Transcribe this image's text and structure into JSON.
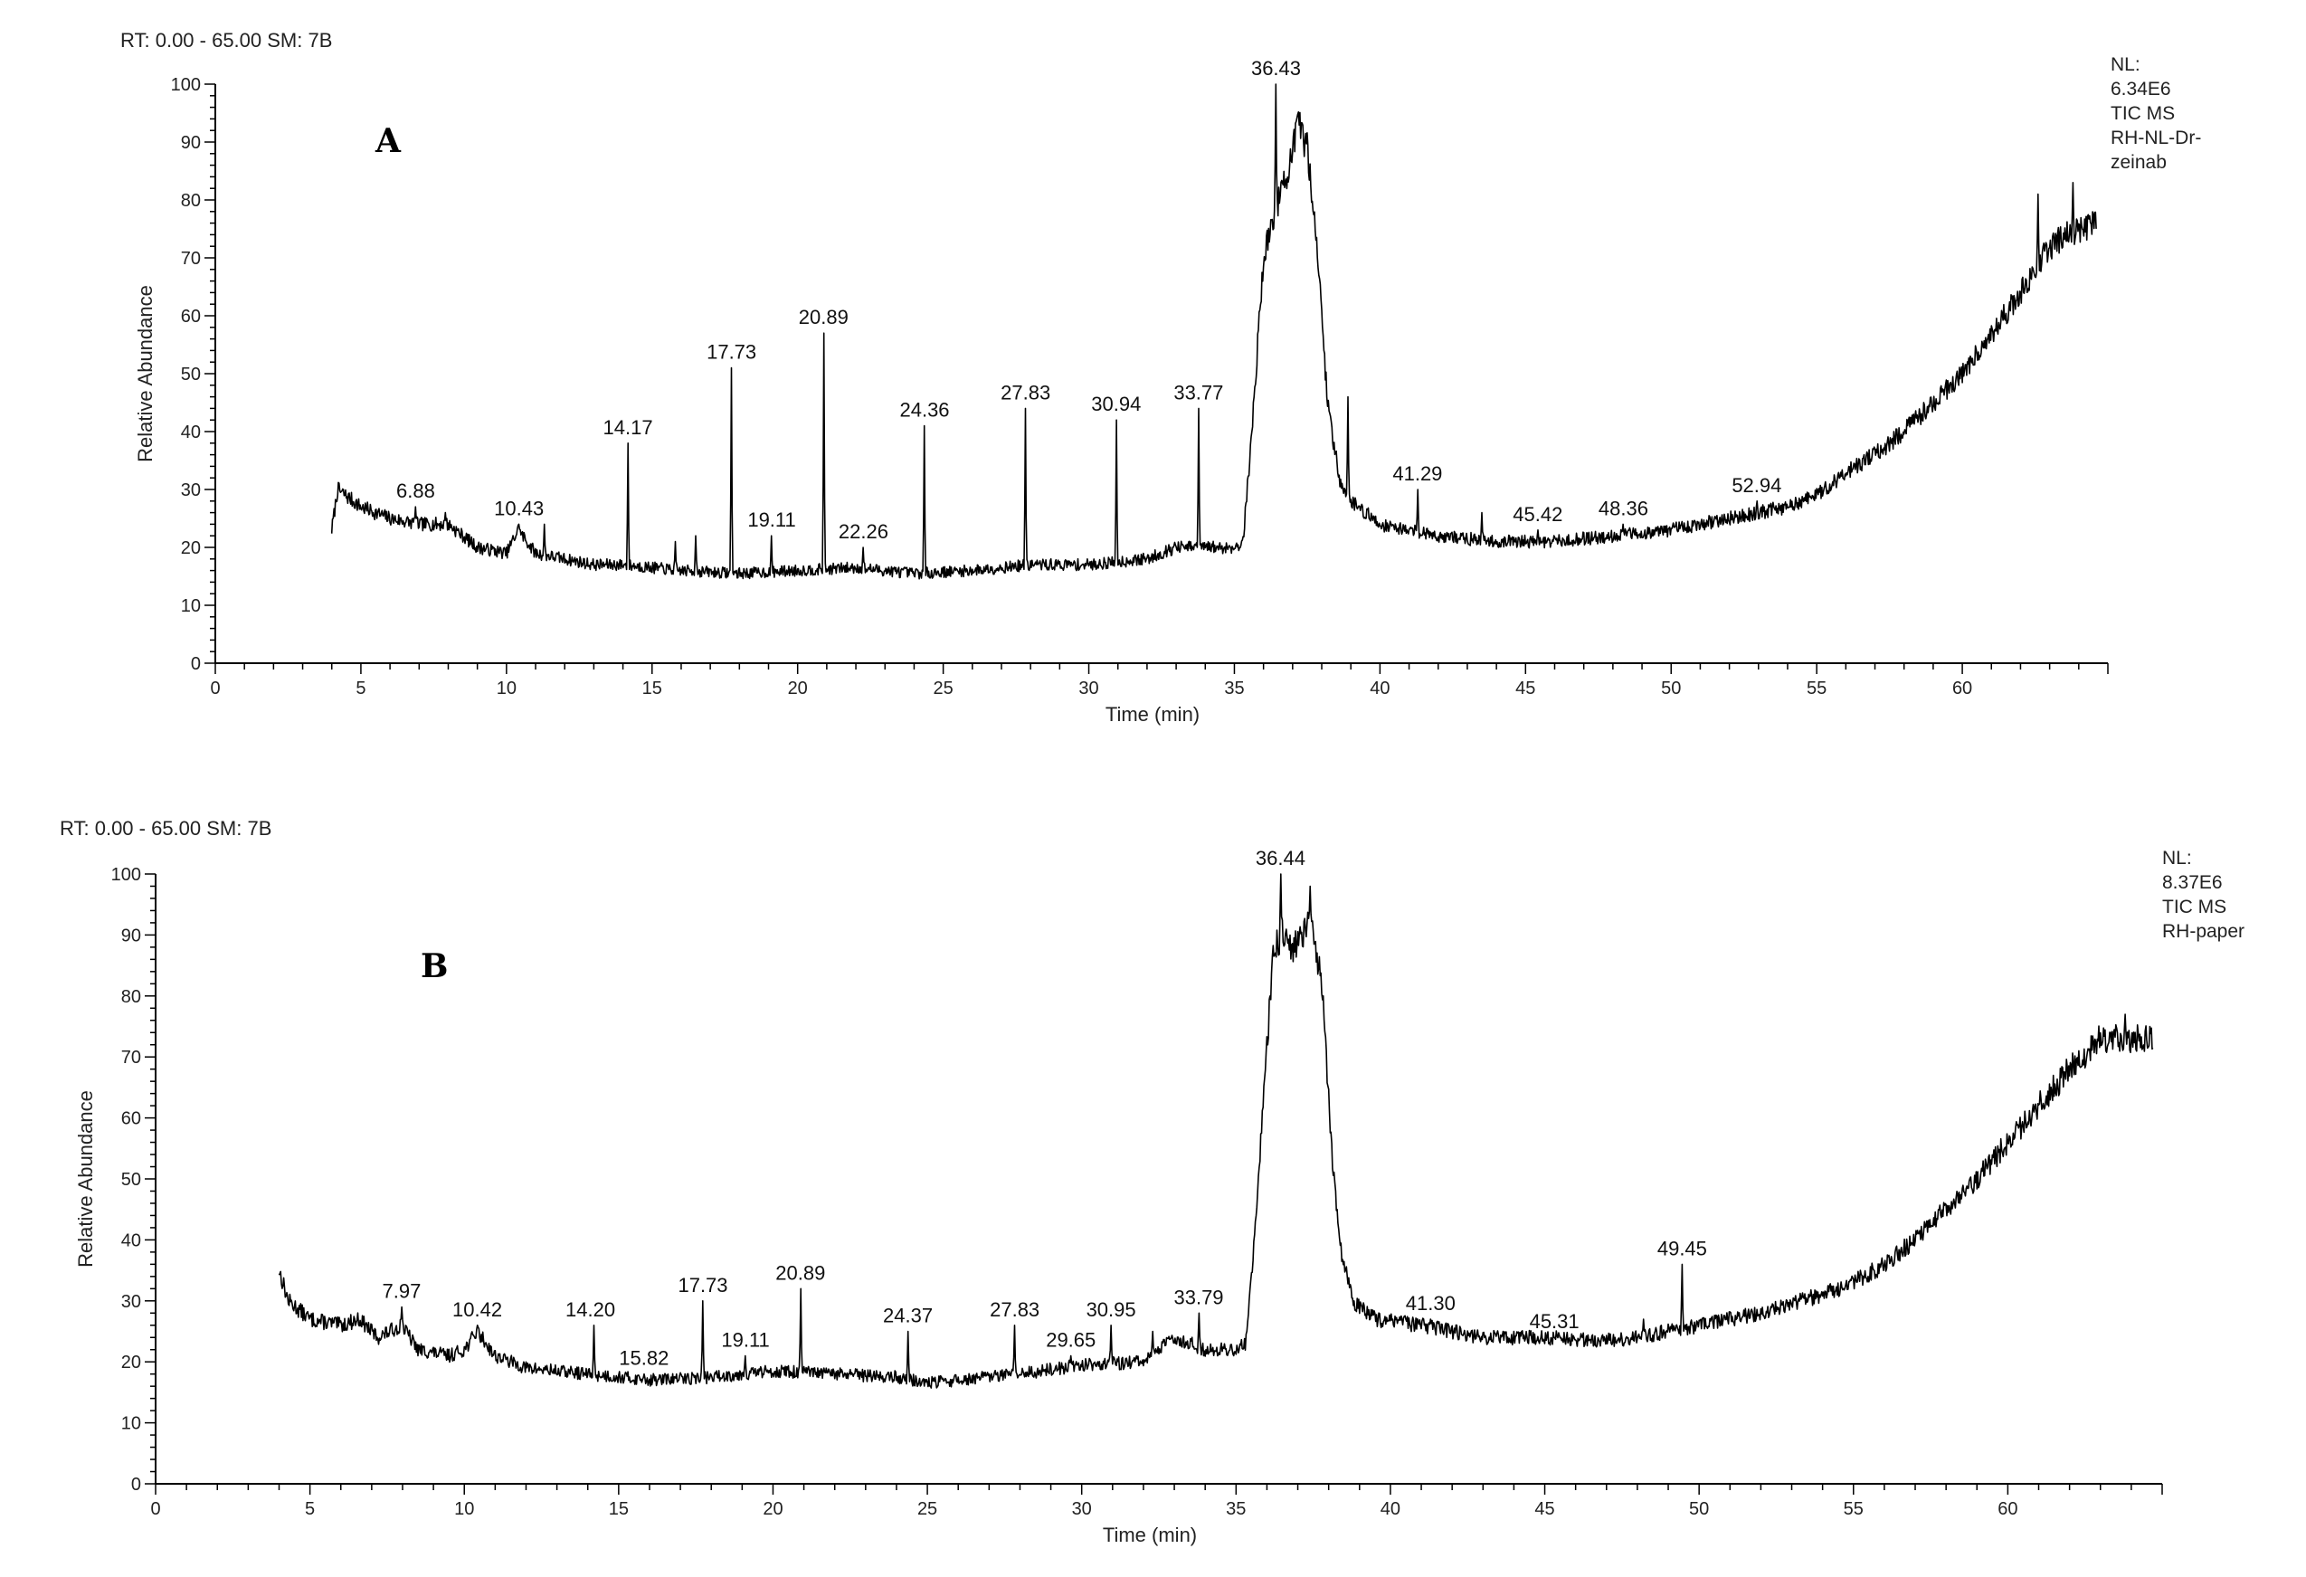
{
  "chart_data": [
    {
      "type": "line",
      "panel_label": "A",
      "header": "RT: 0.00 - 65.00   SM: 7B",
      "xlabel": "Time (min)",
      "ylabel": "Relative Abundance",
      "xlim": [
        0,
        65
      ],
      "ylim": [
        0,
        100
      ],
      "x_ticks": [
        "0",
        "5",
        "10",
        "15",
        "20",
        "25",
        "30",
        "35",
        "40",
        "45",
        "50",
        "55",
        "60"
      ],
      "y_ticks": [
        "0",
        "10",
        "20",
        "30",
        "40",
        "50",
        "60",
        "70",
        "80",
        "90",
        "100"
      ],
      "info": [
        "NL:",
        "6.34E6",
        "TIC  MS",
        "RH-NL-Dr-",
        "zeinab"
      ],
      "baseline": [
        [
          4.0,
          23
        ],
        [
          4.2,
          30
        ],
        [
          5.0,
          27
        ],
        [
          6.0,
          25
        ],
        [
          7.0,
          24
        ],
        [
          8.0,
          24
        ],
        [
          9.0,
          20
        ],
        [
          10.0,
          19
        ],
        [
          10.4,
          23
        ],
        [
          11.0,
          19
        ],
        [
          12.0,
          18
        ],
        [
          13.0,
          17
        ],
        [
          14.0,
          17
        ],
        [
          15.0,
          16.5
        ],
        [
          16.0,
          16
        ],
        [
          18.0,
          15.5
        ],
        [
          20.0,
          16
        ],
        [
          22.0,
          16.5
        ],
        [
          24.0,
          15.5
        ],
        [
          26.0,
          16
        ],
        [
          28.0,
          17
        ],
        [
          30.0,
          17
        ],
        [
          32.0,
          18
        ],
        [
          33.0,
          20
        ],
        [
          35.0,
          20
        ],
        [
          35.3,
          21
        ],
        [
          35.6,
          40
        ],
        [
          36.0,
          70
        ],
        [
          36.4,
          78
        ],
        [
          36.9,
          86
        ],
        [
          37.2,
          93
        ],
        [
          37.5,
          89
        ],
        [
          37.8,
          75
        ],
        [
          38.2,
          45
        ],
        [
          38.6,
          32
        ],
        [
          39.0,
          28
        ],
        [
          40.0,
          24
        ],
        [
          42.0,
          22
        ],
        [
          44.0,
          21
        ],
        [
          46.0,
          21
        ],
        [
          48.0,
          22
        ],
        [
          50.0,
          23
        ],
        [
          52.0,
          25
        ],
        [
          54.0,
          27
        ],
        [
          55.0,
          29
        ],
        [
          56.0,
          33
        ],
        [
          57.0,
          36
        ],
        [
          58.0,
          40
        ],
        [
          59.0,
          45
        ],
        [
          60.0,
          50
        ],
        [
          61.0,
          57
        ],
        [
          62.0,
          64
        ],
        [
          63.0,
          72
        ],
        [
          64.0,
          75
        ],
        [
          64.6,
          76
        ]
      ],
      "noise_seed": 7,
      "peaks": [
        {
          "label": "6.88",
          "rt": 6.88,
          "value": 27
        },
        {
          "label": "",
          "rt": 7.9,
          "value": 26
        },
        {
          "label": "10.43",
          "rt": 10.43,
          "value": 24
        },
        {
          "label": "",
          "rt": 11.3,
          "value": 24
        },
        {
          "label": "14.17",
          "rt": 14.17,
          "value": 38
        },
        {
          "label": "",
          "rt": 15.8,
          "value": 21
        },
        {
          "label": "",
          "rt": 16.5,
          "value": 22
        },
        {
          "label": "17.73",
          "rt": 17.73,
          "value": 51
        },
        {
          "label": "19.11",
          "rt": 19.11,
          "value": 22
        },
        {
          "label": "20.89",
          "rt": 20.89,
          "value": 57
        },
        {
          "label": "22.26",
          "rt": 22.26,
          "value": 20
        },
        {
          "label": "24.36",
          "rt": 24.36,
          "value": 41
        },
        {
          "label": "27.83",
          "rt": 27.83,
          "value": 44
        },
        {
          "label": "30.94",
          "rt": 30.94,
          "value": 42
        },
        {
          "label": "33.77",
          "rt": 33.77,
          "value": 44
        },
        {
          "label": "36.43",
          "rt": 36.43,
          "value": 100
        },
        {
          "label": "",
          "rt": 38.9,
          "value": 46
        },
        {
          "label": "41.29",
          "rt": 41.29,
          "value": 30
        },
        {
          "label": "",
          "rt": 43.5,
          "value": 26
        },
        {
          "label": "45.42",
          "rt": 45.42,
          "value": 23
        },
        {
          "label": "48.36",
          "rt": 48.36,
          "value": 24
        },
        {
          "label": "52.94",
          "rt": 52.94,
          "value": 28
        },
        {
          "label": "",
          "rt": 62.6,
          "value": 81
        },
        {
          "label": "",
          "rt": 63.8,
          "value": 83
        }
      ]
    },
    {
      "type": "line",
      "panel_label": "B",
      "header": "RT: 0.00 - 65.00   SM: 7B",
      "xlabel": "Time (min)",
      "ylabel": "Relative Abundance",
      "xlim": [
        0,
        65
      ],
      "ylim": [
        0,
        100
      ],
      "x_ticks": [
        "0",
        "5",
        "10",
        "15",
        "20",
        "25",
        "30",
        "35",
        "40",
        "45",
        "50",
        "55",
        "60"
      ],
      "y_ticks": [
        "0",
        "10",
        "20",
        "30",
        "40",
        "50",
        "60",
        "70",
        "80",
        "90",
        "100"
      ],
      "info": [
        "NL:",
        "8.37E6",
        "TIC  MS",
        "RH-paper"
      ],
      "baseline": [
        [
          4.0,
          35
        ],
        [
          4.3,
          30
        ],
        [
          5.0,
          27
        ],
        [
          6.0,
          26
        ],
        [
          6.6,
          27
        ],
        [
          7.2,
          24
        ],
        [
          7.97,
          26
        ],
        [
          8.5,
          22
        ],
        [
          9.5,
          21
        ],
        [
          10.0,
          22
        ],
        [
          10.42,
          25
        ],
        [
          11.0,
          21
        ],
        [
          12.0,
          19
        ],
        [
          13.0,
          18.5
        ],
        [
          14.0,
          18
        ],
        [
          15.0,
          17.5
        ],
        [
          16.0,
          17
        ],
        [
          18.0,
          17.5
        ],
        [
          20.0,
          18.5
        ],
        [
          22.0,
          18
        ],
        [
          24.0,
          17.5
        ],
        [
          25.0,
          16.5
        ],
        [
          26.0,
          17
        ],
        [
          28.0,
          18
        ],
        [
          30.0,
          19.5
        ],
        [
          32.0,
          20
        ],
        [
          33.0,
          24
        ],
        [
          34.0,
          22
        ],
        [
          35.0,
          22
        ],
        [
          35.3,
          23
        ],
        [
          35.6,
          40
        ],
        [
          35.9,
          65
        ],
        [
          36.2,
          86
        ],
        [
          36.44,
          90
        ],
        [
          36.8,
          88
        ],
        [
          37.1,
          90
        ],
        [
          37.5,
          92
        ],
        [
          37.8,
          80
        ],
        [
          38.1,
          55
        ],
        [
          38.4,
          38
        ],
        [
          38.8,
          30
        ],
        [
          39.5,
          27
        ],
        [
          41.0,
          26
        ],
        [
          43.0,
          24
        ],
        [
          45.0,
          24
        ],
        [
          47.0,
          23.5
        ],
        [
          48.0,
          24
        ],
        [
          49.0,
          25
        ],
        [
          50.0,
          26
        ],
        [
          51.0,
          27
        ],
        [
          52.0,
          28
        ],
        [
          54.0,
          31
        ],
        [
          55.0,
          33
        ],
        [
          56.0,
          36
        ],
        [
          57.0,
          40
        ],
        [
          58.0,
          45
        ],
        [
          59.0,
          50
        ],
        [
          60.0,
          56
        ],
        [
          61.0,
          62
        ],
        [
          62.0,
          68
        ],
        [
          63.0,
          73
        ],
        [
          64.7,
          73
        ]
      ],
      "noise_seed": 13,
      "peaks": [
        {
          "label": "7.97",
          "rt": 7.97,
          "value": 29
        },
        {
          "label": "10.42",
          "rt": 10.42,
          "value": 26
        },
        {
          "label": "14.20",
          "rt": 14.2,
          "value": 26
        },
        {
          "label": "15.82",
          "rt": 15.82,
          "value": 18
        },
        {
          "label": "17.73",
          "rt": 17.73,
          "value": 30
        },
        {
          "label": "19.11",
          "rt": 19.11,
          "value": 21
        },
        {
          "label": "20.89",
          "rt": 20.89,
          "value": 32
        },
        {
          "label": "24.37",
          "rt": 24.37,
          "value": 25
        },
        {
          "label": "27.83",
          "rt": 27.83,
          "value": 26
        },
        {
          "label": "29.65",
          "rt": 29.65,
          "value": 21
        },
        {
          "label": "30.95",
          "rt": 30.95,
          "value": 26
        },
        {
          "label": "",
          "rt": 32.3,
          "value": 25
        },
        {
          "label": "33.79",
          "rt": 33.79,
          "value": 28
        },
        {
          "label": "36.44",
          "rt": 36.44,
          "value": 100
        },
        {
          "label": "",
          "rt": 37.4,
          "value": 98
        },
        {
          "label": "41.30",
          "rt": 41.3,
          "value": 27
        },
        {
          "label": "45.31",
          "rt": 45.31,
          "value": 24
        },
        {
          "label": "",
          "rt": 48.2,
          "value": 27
        },
        {
          "label": "49.45",
          "rt": 49.45,
          "value": 36
        },
        {
          "label": "",
          "rt": 63.8,
          "value": 77
        }
      ]
    }
  ]
}
